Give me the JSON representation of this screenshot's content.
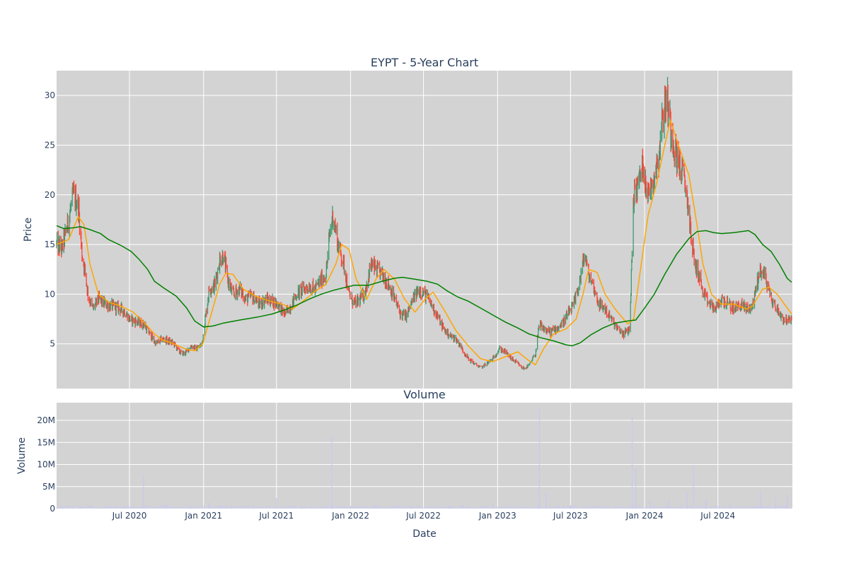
{
  "chart_data": {
    "type": "candlestick",
    "title": "EYPT - 5-Year Chart",
    "price_panel": {
      "ylabel": "Price",
      "ylim": [
        0.5,
        32.5
      ],
      "yticks": [
        5,
        10,
        15,
        20,
        25,
        30
      ]
    },
    "volume_panel": {
      "subtitle": "Volume",
      "ylabel": "Volume",
      "ylim": [
        0,
        24000000
      ],
      "yticks": [
        {
          "value": 0,
          "label": "0"
        },
        {
          "value": 5000000,
          "label": "5M"
        },
        {
          "value": 10000000,
          "label": "10M"
        },
        {
          "value": 15000000,
          "label": "15M"
        },
        {
          "value": 20000000,
          "label": "20M"
        }
      ]
    },
    "xlabel": "Date",
    "xlim": [
      "2020-01-02",
      "2025-01-02"
    ],
    "xticks": [
      {
        "date": "2020-07-01",
        "label": "Jul 2020"
      },
      {
        "date": "2021-01-01",
        "label": "Jan 2021"
      },
      {
        "date": "2021-07-01",
        "label": "Jul 2021"
      },
      {
        "date": "2022-01-01",
        "label": "Jan 2022"
      },
      {
        "date": "2022-07-01",
        "label": "Jul 2022"
      },
      {
        "date": "2023-01-01",
        "label": "Jan 2023"
      },
      {
        "date": "2023-07-01",
        "label": "Jul 2023"
      },
      {
        "date": "2024-01-01",
        "label": "Jan 2024"
      },
      {
        "date": "2024-07-01",
        "label": "Jul 2024"
      }
    ],
    "grid": true,
    "colors": {
      "plot_bg": "#d3d3d3",
      "grid": "#ffffff",
      "up": "#3d9970",
      "down": "#ff4136",
      "ma_short": "#ffa500",
      "ma_long": "#008000",
      "volume": "#c8c8f0"
    },
    "close_series": [
      [
        "2020-01-02",
        15.0
      ],
      [
        "2020-01-15",
        14.6
      ],
      [
        "2020-02-01",
        17.5
      ],
      [
        "2020-02-12",
        20.0
      ],
      [
        "2020-02-25",
        19.0
      ],
      [
        "2020-03-05",
        14.0
      ],
      [
        "2020-03-12",
        12.5
      ],
      [
        "2020-03-20",
        10.0
      ],
      [
        "2020-04-01",
        8.5
      ],
      [
        "2020-04-15",
        9.5
      ],
      [
        "2020-05-01",
        9.0
      ],
      [
        "2020-05-20",
        8.8
      ],
      [
        "2020-06-10",
        8.5
      ],
      [
        "2020-06-20",
        8.2
      ],
      [
        "2020-07-01",
        7.5
      ],
      [
        "2020-07-20",
        7.2
      ],
      [
        "2020-08-05",
        7.0
      ],
      [
        "2020-08-20",
        6.0
      ],
      [
        "2020-09-05",
        5.0
      ],
      [
        "2020-09-20",
        5.5
      ],
      [
        "2020-10-05",
        5.3
      ],
      [
        "2020-10-20",
        5.0
      ],
      [
        "2020-11-01",
        4.2
      ],
      [
        "2020-11-15",
        4.0
      ],
      [
        "2020-12-01",
        4.8
      ],
      [
        "2020-12-15",
        4.5
      ],
      [
        "2020-12-28",
        5.0
      ],
      [
        "2021-01-05",
        7.5
      ],
      [
        "2021-01-15",
        10.5
      ],
      [
        "2021-01-30",
        11.0
      ],
      [
        "2021-02-10",
        13.5
      ],
      [
        "2021-02-20",
        14.0
      ],
      [
        "2021-03-01",
        11.5
      ],
      [
        "2021-03-15",
        10.0
      ],
      [
        "2021-04-01",
        10.5
      ],
      [
        "2021-04-15",
        9.5
      ],
      [
        "2021-05-01",
        9.8
      ],
      [
        "2021-05-20",
        9.0
      ],
      [
        "2021-06-05",
        9.5
      ],
      [
        "2021-06-20",
        9.3
      ],
      [
        "2021-07-05",
        9.0
      ],
      [
        "2021-07-20",
        8.0
      ],
      [
        "2021-08-01",
        8.5
      ],
      [
        "2021-08-20",
        10.0
      ],
      [
        "2021-09-05",
        10.5
      ],
      [
        "2021-09-20",
        10.8
      ],
      [
        "2021-10-05",
        10.5
      ],
      [
        "2021-10-20",
        11.5
      ],
      [
        "2021-11-01",
        12.0
      ],
      [
        "2021-11-10",
        16.0
      ],
      [
        "2021-11-18",
        18.0
      ],
      [
        "2021-12-01",
        15.0
      ],
      [
        "2021-12-15",
        13.0
      ],
      [
        "2021-12-28",
        10.0
      ],
      [
        "2022-01-10",
        9.0
      ],
      [
        "2022-01-25",
        9.5
      ],
      [
        "2022-02-05",
        10.0
      ],
      [
        "2022-02-20",
        13.0
      ],
      [
        "2022-03-05",
        12.5
      ],
      [
        "2022-03-20",
        12.0
      ],
      [
        "2022-04-05",
        11.0
      ],
      [
        "2022-04-20",
        9.5
      ],
      [
        "2022-05-05",
        8.0
      ],
      [
        "2022-05-20",
        7.8
      ],
      [
        "2022-06-05",
        9.5
      ],
      [
        "2022-06-20",
        10.5
      ],
      [
        "2022-07-05",
        10.0
      ],
      [
        "2022-07-20",
        9.0
      ],
      [
        "2022-08-05",
        7.8
      ],
      [
        "2022-08-20",
        6.5
      ],
      [
        "2022-09-05",
        5.8
      ],
      [
        "2022-09-20",
        5.5
      ],
      [
        "2022-10-05",
        4.5
      ],
      [
        "2022-10-20",
        3.5
      ],
      [
        "2022-11-05",
        3.0
      ],
      [
        "2022-11-20",
        2.6
      ],
      [
        "2022-12-05",
        3.0
      ],
      [
        "2022-12-20",
        3.5
      ],
      [
        "2023-01-05",
        4.5
      ],
      [
        "2023-01-20",
        4.2
      ],
      [
        "2023-02-05",
        3.5
      ],
      [
        "2023-02-20",
        3.0
      ],
      [
        "2023-03-05",
        2.5
      ],
      [
        "2023-03-20",
        2.8
      ],
      [
        "2023-04-05",
        4.0
      ],
      [
        "2023-04-15",
        7.0
      ],
      [
        "2023-04-25",
        6.5
      ],
      [
        "2023-05-10",
        6.2
      ],
      [
        "2023-05-25",
        6.5
      ],
      [
        "2023-06-10",
        7.0
      ],
      [
        "2023-06-25",
        8.0
      ],
      [
        "2023-07-10",
        9.0
      ],
      [
        "2023-07-25",
        11.5
      ],
      [
        "2023-08-05",
        14.0
      ],
      [
        "2023-08-15",
        12.0
      ],
      [
        "2023-08-25",
        11.0
      ],
      [
        "2023-09-10",
        9.0
      ],
      [
        "2023-09-25",
        8.5
      ],
      [
        "2023-10-10",
        7.5
      ],
      [
        "2023-10-25",
        6.5
      ],
      [
        "2023-11-10",
        6.0
      ],
      [
        "2023-11-25",
        6.5
      ],
      [
        "2023-12-05",
        20.0
      ],
      [
        "2023-12-15",
        21.0
      ],
      [
        "2023-12-28",
        23.0
      ],
      [
        "2024-01-10",
        20.0
      ],
      [
        "2024-01-25",
        22.0
      ],
      [
        "2024-02-05",
        24.0
      ],
      [
        "2024-02-15",
        28.0
      ],
      [
        "2024-02-25",
        30.0
      ],
      [
        "2024-03-05",
        27.0
      ],
      [
        "2024-03-20",
        24.0
      ],
      [
        "2024-04-05",
        22.0
      ],
      [
        "2024-04-15",
        20.0
      ],
      [
        "2024-04-25",
        16.0
      ],
      [
        "2024-05-05",
        13.0
      ],
      [
        "2024-05-15",
        12.0
      ],
      [
        "2024-05-25",
        10.0
      ],
      [
        "2024-06-10",
        9.0
      ],
      [
        "2024-06-25",
        8.5
      ],
      [
        "2024-07-10",
        9.5
      ],
      [
        "2024-07-25",
        9.0
      ],
      [
        "2024-08-10",
        8.5
      ],
      [
        "2024-08-25",
        9.0
      ],
      [
        "2024-09-10",
        8.5
      ],
      [
        "2024-09-25",
        8.8
      ],
      [
        "2024-10-05",
        11.0
      ],
      [
        "2024-10-15",
        12.5
      ],
      [
        "2024-10-25",
        12.0
      ],
      [
        "2024-11-10",
        9.5
      ],
      [
        "2024-11-25",
        8.5
      ],
      [
        "2024-12-10",
        7.5
      ],
      [
        "2024-12-31",
        7.3
      ]
    ],
    "ma_short_series": [
      [
        "2020-01-02",
        15.0
      ],
      [
        "2020-02-01",
        15.5
      ],
      [
        "2020-02-25",
        17.8
      ],
      [
        "2020-03-10",
        17.0
      ],
      [
        "2020-03-25",
        13.0
      ],
      [
        "2020-04-15",
        10.0
      ],
      [
        "2020-05-10",
        9.2
      ],
      [
        "2020-06-10",
        8.8
      ],
      [
        "2020-07-10",
        8.2
      ],
      [
        "2020-08-10",
        7.0
      ],
      [
        "2020-09-01",
        6.0
      ],
      [
        "2020-09-20",
        5.4
      ],
      [
        "2020-10-20",
        5.0
      ],
      [
        "2020-11-15",
        4.5
      ],
      [
        "2020-12-10",
        4.3
      ],
      [
        "2020-12-30",
        5.0
      ],
      [
        "2021-01-20",
        8.0
      ],
      [
        "2021-02-10",
        11.0
      ],
      [
        "2021-02-25",
        12.1
      ],
      [
        "2021-03-15",
        12.0
      ],
      [
        "2021-04-10",
        10.5
      ],
      [
        "2021-05-10",
        9.8
      ],
      [
        "2021-06-15",
        9.3
      ],
      [
        "2021-07-15",
        9.0
      ],
      [
        "2021-08-10",
        8.5
      ],
      [
        "2021-09-05",
        9.3
      ],
      [
        "2021-10-05",
        10.3
      ],
      [
        "2021-11-01",
        11.0
      ],
      [
        "2021-11-25",
        13.0
      ],
      [
        "2021-12-10",
        15.0
      ],
      [
        "2021-12-28",
        14.5
      ],
      [
        "2022-01-15",
        11.5
      ],
      [
        "2022-02-10",
        9.5
      ],
      [
        "2022-03-05",
        11.5
      ],
      [
        "2022-03-25",
        12.5
      ],
      [
        "2022-04-20",
        11.5
      ],
      [
        "2022-05-15",
        9.5
      ],
      [
        "2022-06-10",
        8.2
      ],
      [
        "2022-07-05",
        9.5
      ],
      [
        "2022-07-25",
        10.2
      ],
      [
        "2022-08-20",
        8.5
      ],
      [
        "2022-09-20",
        6.3
      ],
      [
        "2022-10-20",
        4.8
      ],
      [
        "2022-11-20",
        3.5
      ],
      [
        "2022-12-20",
        3.2
      ],
      [
        "2023-01-20",
        3.7
      ],
      [
        "2023-02-20",
        4.2
      ],
      [
        "2023-03-20",
        3.3
      ],
      [
        "2023-04-05",
        2.9
      ],
      [
        "2023-04-25",
        4.5
      ],
      [
        "2023-05-20",
        6.0
      ],
      [
        "2023-06-20",
        6.5
      ],
      [
        "2023-07-15",
        7.5
      ],
      [
        "2023-08-01",
        10.0
      ],
      [
        "2023-08-15",
        12.5
      ],
      [
        "2023-09-05",
        12.2
      ],
      [
        "2023-09-25",
        10.0
      ],
      [
        "2023-10-20",
        8.5
      ],
      [
        "2023-11-20",
        7.0
      ],
      [
        "2023-12-05",
        7.5
      ],
      [
        "2023-12-20",
        12.0
      ],
      [
        "2024-01-10",
        18.0
      ],
      [
        "2024-01-30",
        21.0
      ],
      [
        "2024-02-20",
        25.0
      ],
      [
        "2024-03-05",
        27.5
      ],
      [
        "2024-03-25",
        25.0
      ],
      [
        "2024-04-20",
        22.0
      ],
      [
        "2024-05-10",
        17.0
      ],
      [
        "2024-05-25",
        13.0
      ],
      [
        "2024-06-15",
        10.0
      ],
      [
        "2024-07-10",
        9.0
      ],
      [
        "2024-08-10",
        9.0
      ],
      [
        "2024-09-10",
        8.5
      ],
      [
        "2024-09-25",
        8.8
      ],
      [
        "2024-10-20",
        10.5
      ],
      [
        "2024-11-05",
        10.7
      ],
      [
        "2024-11-25",
        10.0
      ],
      [
        "2024-12-31",
        8.0
      ]
    ],
    "ma_long_series": [
      [
        "2020-01-02",
        16.9
      ],
      [
        "2020-01-20",
        16.6
      ],
      [
        "2020-02-15",
        16.7
      ],
      [
        "2020-03-01",
        16.8
      ],
      [
        "2020-03-25",
        16.5
      ],
      [
        "2020-04-20",
        16.1
      ],
      [
        "2020-05-10",
        15.5
      ],
      [
        "2020-06-10",
        14.9
      ],
      [
        "2020-07-05",
        14.3
      ],
      [
        "2020-07-25",
        13.5
      ],
      [
        "2020-08-15",
        12.5
      ],
      [
        "2020-09-01",
        11.3
      ],
      [
        "2020-09-25",
        10.6
      ],
      [
        "2020-10-25",
        9.8
      ],
      [
        "2020-11-20",
        8.6
      ],
      [
        "2020-12-10",
        7.3
      ],
      [
        "2021-01-01",
        6.7
      ],
      [
        "2021-01-25",
        6.8
      ],
      [
        "2021-02-20",
        7.1
      ],
      [
        "2021-04-01",
        7.4
      ],
      [
        "2021-05-15",
        7.7
      ],
      [
        "2021-06-20",
        8.0
      ],
      [
        "2021-07-20",
        8.4
      ],
      [
        "2021-08-20",
        8.9
      ],
      [
        "2021-09-20",
        9.5
      ],
      [
        "2021-10-20",
        10.0
      ],
      [
        "2021-11-20",
        10.4
      ],
      [
        "2021-12-20",
        10.7
      ],
      [
        "2022-01-10",
        10.9
      ],
      [
        "2022-02-15",
        10.9
      ],
      [
        "2022-03-20",
        11.3
      ],
      [
        "2022-04-20",
        11.6
      ],
      [
        "2022-05-10",
        11.7
      ],
      [
        "2022-06-10",
        11.5
      ],
      [
        "2022-07-10",
        11.3
      ],
      [
        "2022-08-05",
        11.0
      ],
      [
        "2022-08-30",
        10.3
      ],
      [
        "2022-09-25",
        9.7
      ],
      [
        "2022-10-20",
        9.3
      ],
      [
        "2022-11-20",
        8.6
      ],
      [
        "2022-12-20",
        7.9
      ],
      [
        "2023-01-20",
        7.2
      ],
      [
        "2023-02-20",
        6.6
      ],
      [
        "2023-03-20",
        6.0
      ],
      [
        "2023-04-20",
        5.6
      ],
      [
        "2023-05-20",
        5.3
      ],
      [
        "2023-06-20",
        4.9
      ],
      [
        "2023-07-05",
        4.8
      ],
      [
        "2023-07-25",
        5.1
      ],
      [
        "2023-08-20",
        5.9
      ],
      [
        "2023-09-20",
        6.6
      ],
      [
        "2023-10-20",
        7.1
      ],
      [
        "2023-11-20",
        7.3
      ],
      [
        "2023-12-10",
        7.4
      ],
      [
        "2024-01-01",
        8.6
      ],
      [
        "2024-01-25",
        10.0
      ],
      [
        "2024-02-20",
        12.0
      ],
      [
        "2024-03-20",
        14.0
      ],
      [
        "2024-04-20",
        15.6
      ],
      [
        "2024-05-10",
        16.3
      ],
      [
        "2024-06-01",
        16.4
      ],
      [
        "2024-06-20",
        16.2
      ],
      [
        "2024-07-10",
        16.1
      ],
      [
        "2024-08-10",
        16.2
      ],
      [
        "2024-09-15",
        16.4
      ],
      [
        "2024-10-01",
        16.0
      ],
      [
        "2024-10-20",
        15.0
      ],
      [
        "2024-11-10",
        14.3
      ],
      [
        "2024-12-01",
        13.0
      ],
      [
        "2024-12-20",
        11.6
      ],
      [
        "2024-12-31",
        11.2
      ]
    ],
    "volume_series": [
      [
        "2020-01-15",
        600000
      ],
      [
        "2020-03-01",
        400000
      ],
      [
        "2020-05-01",
        300000
      ],
      [
        "2020-08-05",
        7800000
      ],
      [
        "2020-10-01",
        1000000
      ],
      [
        "2020-12-01",
        500000
      ],
      [
        "2021-01-15",
        1500000
      ],
      [
        "2021-02-15",
        800000
      ],
      [
        "2021-07-01",
        2400000
      ],
      [
        "2021-09-01",
        500000
      ],
      [
        "2021-11-15",
        16500000
      ],
      [
        "2022-01-01",
        600000
      ],
      [
        "2022-03-01",
        800000
      ],
      [
        "2022-06-01",
        400000
      ],
      [
        "2022-09-01",
        300000
      ],
      [
        "2022-12-20",
        1200000
      ],
      [
        "2023-04-15",
        23000000
      ],
      [
        "2023-05-01",
        3500000
      ],
      [
        "2023-07-01",
        800000
      ],
      [
        "2023-09-01",
        600000
      ],
      [
        "2023-12-01",
        20500000
      ],
      [
        "2023-12-10",
        9000000
      ],
      [
        "2024-01-15",
        2000000
      ],
      [
        "2024-03-01",
        2200000
      ],
      [
        "2024-04-15",
        4000000
      ],
      [
        "2024-05-01",
        9800000
      ],
      [
        "2024-06-01",
        2000000
      ],
      [
        "2024-08-01",
        1500000
      ],
      [
        "2024-10-15",
        4200000
      ],
      [
        "2024-11-20",
        2500000
      ],
      [
        "2024-12-20",
        3000000
      ]
    ]
  }
}
